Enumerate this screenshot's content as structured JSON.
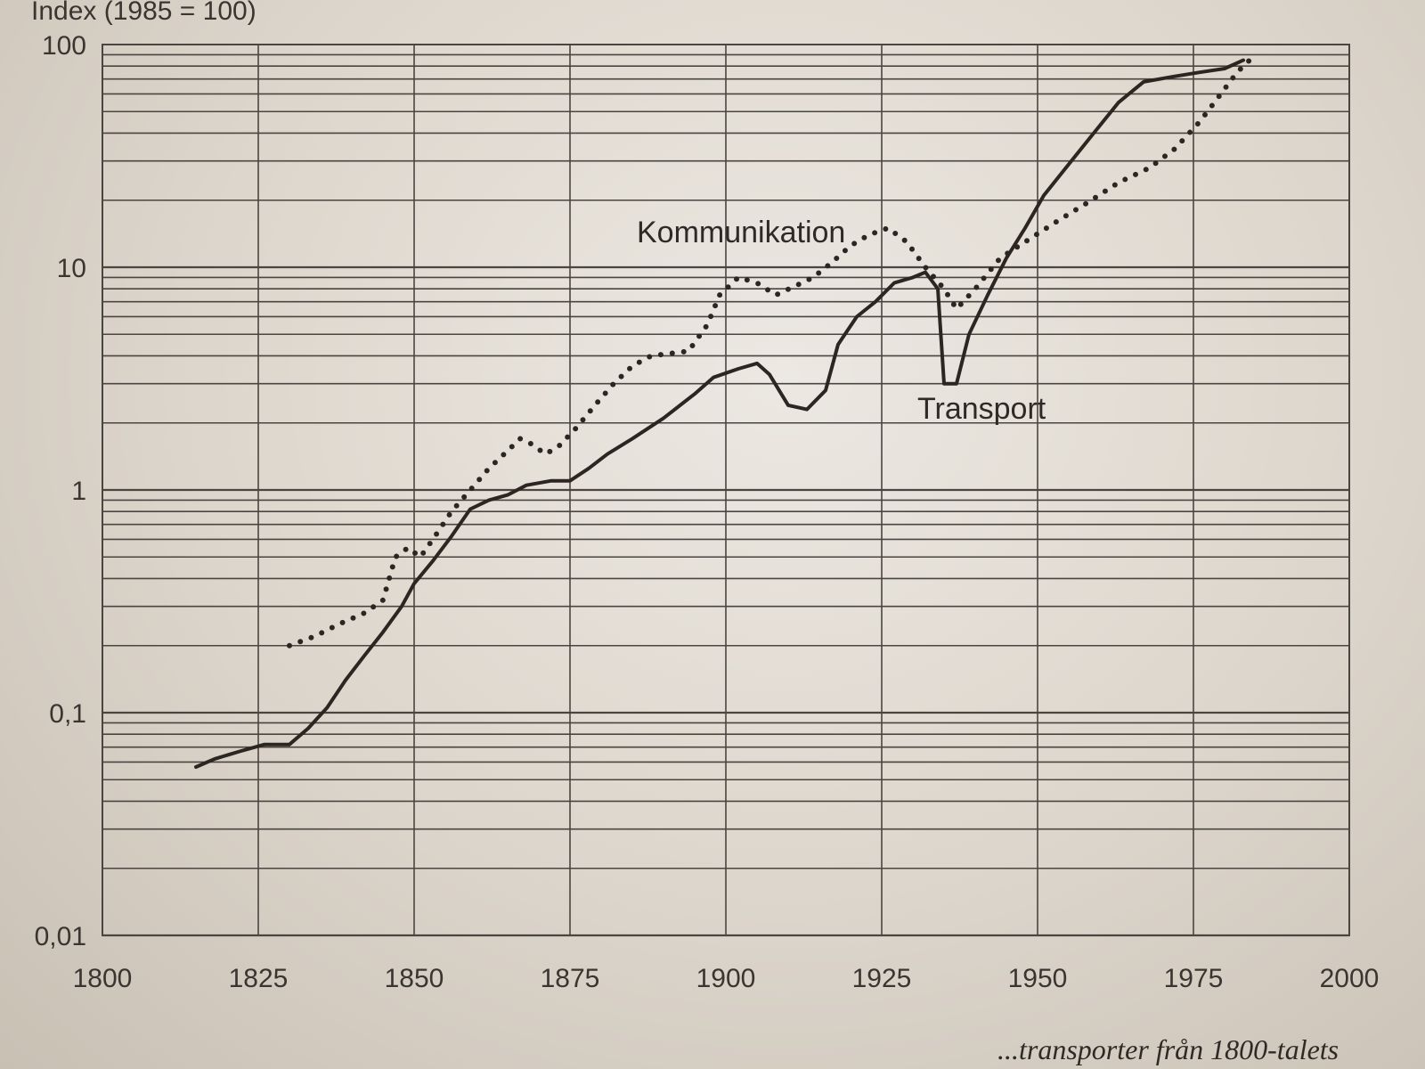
{
  "caption": "...transporter från 1800-talets",
  "chart_data": {
    "type": "line",
    "ylabel": "Index (1985 = 100)",
    "yscale": "log",
    "ylim": [
      0.01,
      100
    ],
    "xlim": [
      1800,
      2000
    ],
    "xticks": [
      1800,
      1825,
      1850,
      1875,
      1900,
      1925,
      1950,
      1975,
      2000
    ],
    "xtick_labels": [
      "1800",
      "1825",
      "1850",
      "1875",
      "1900",
      "1925",
      "1950",
      "1975",
      "2000"
    ],
    "yticks": [
      0.01,
      0.1,
      1,
      10,
      100
    ],
    "ytick_labels": [
      "0,01",
      "0,1",
      "1",
      "10",
      "100"
    ],
    "grid": true,
    "series": [
      {
        "name": "Transport",
        "style": "solid",
        "color": "#2b2622",
        "points": [
          [
            1815,
            0.057
          ],
          [
            1818,
            0.062
          ],
          [
            1822,
            0.067
          ],
          [
            1826,
            0.072
          ],
          [
            1830,
            0.072
          ],
          [
            1833,
            0.085
          ],
          [
            1836,
            0.105
          ],
          [
            1839,
            0.14
          ],
          [
            1842,
            0.18
          ],
          [
            1845,
            0.23
          ],
          [
            1848,
            0.3
          ],
          [
            1850,
            0.38
          ],
          [
            1853,
            0.48
          ],
          [
            1856,
            0.62
          ],
          [
            1859,
            0.82
          ],
          [
            1862,
            0.9
          ],
          [
            1865,
            0.95
          ],
          [
            1868,
            1.05
          ],
          [
            1872,
            1.1
          ],
          [
            1875,
            1.1
          ],
          [
            1878,
            1.25
          ],
          [
            1881,
            1.45
          ],
          [
            1885,
            1.7
          ],
          [
            1890,
            2.1
          ],
          [
            1895,
            2.7
          ],
          [
            1898,
            3.2
          ],
          [
            1902,
            3.5
          ],
          [
            1905,
            3.7
          ],
          [
            1907,
            3.3
          ],
          [
            1910,
            2.4
          ],
          [
            1913,
            2.3
          ],
          [
            1916,
            2.8
          ],
          [
            1918,
            4.5
          ],
          [
            1921,
            6.0
          ],
          [
            1924,
            7.0
          ],
          [
            1927,
            8.5
          ],
          [
            1930,
            9.0
          ],
          [
            1932,
            9.5
          ],
          [
            1934,
            8.0
          ],
          [
            1935,
            3.0
          ],
          [
            1937,
            3.0
          ],
          [
            1939,
            5.0
          ],
          [
            1942,
            7.5
          ],
          [
            1945,
            11.0
          ],
          [
            1948,
            15.0
          ],
          [
            1951,
            21.0
          ],
          [
            1955,
            29.0
          ],
          [
            1959,
            40.0
          ],
          [
            1963,
            55.0
          ],
          [
            1967,
            68.0
          ],
          [
            1972,
            72.0
          ],
          [
            1976,
            75.0
          ],
          [
            1980,
            78.0
          ],
          [
            1983,
            85.0
          ]
        ]
      },
      {
        "name": "Kommunikation",
        "style": "dotted",
        "color": "#2b2622",
        "points": [
          [
            1830,
            0.2
          ],
          [
            1834,
            0.22
          ],
          [
            1838,
            0.25
          ],
          [
            1842,
            0.28
          ],
          [
            1845,
            0.32
          ],
          [
            1847,
            0.5
          ],
          [
            1849,
            0.55
          ],
          [
            1851,
            0.5
          ],
          [
            1853,
            0.6
          ],
          [
            1856,
            0.8
          ],
          [
            1859,
            1.0
          ],
          [
            1862,
            1.25
          ],
          [
            1865,
            1.5
          ],
          [
            1867,
            1.7
          ],
          [
            1869,
            1.6
          ],
          [
            1871,
            1.45
          ],
          [
            1873,
            1.55
          ],
          [
            1876,
            1.9
          ],
          [
            1879,
            2.4
          ],
          [
            1882,
            3.0
          ],
          [
            1885,
            3.6
          ],
          [
            1888,
            4.0
          ],
          [
            1891,
            4.1
          ],
          [
            1894,
            4.2
          ],
          [
            1897,
            5.5
          ],
          [
            1899,
            7.5
          ],
          [
            1902,
            9.0
          ],
          [
            1905,
            8.5
          ],
          [
            1908,
            7.5
          ],
          [
            1911,
            8.2
          ],
          [
            1914,
            9.0
          ],
          [
            1917,
            10.5
          ],
          [
            1920,
            12.5
          ],
          [
            1923,
            14.0
          ],
          [
            1926,
            15.0
          ],
          [
            1929,
            13.0
          ],
          [
            1932,
            10.0
          ],
          [
            1935,
            8.0
          ],
          [
            1937,
            6.5
          ],
          [
            1940,
            8.0
          ],
          [
            1944,
            11.0
          ],
          [
            1948,
            13.0
          ],
          [
            1953,
            16.0
          ],
          [
            1958,
            19.5
          ],
          [
            1963,
            24.0
          ],
          [
            1968,
            28.0
          ],
          [
            1972,
            34.0
          ],
          [
            1976,
            45.0
          ],
          [
            1979,
            58.0
          ],
          [
            1982,
            75.0
          ],
          [
            1984,
            85.0
          ]
        ]
      }
    ]
  }
}
